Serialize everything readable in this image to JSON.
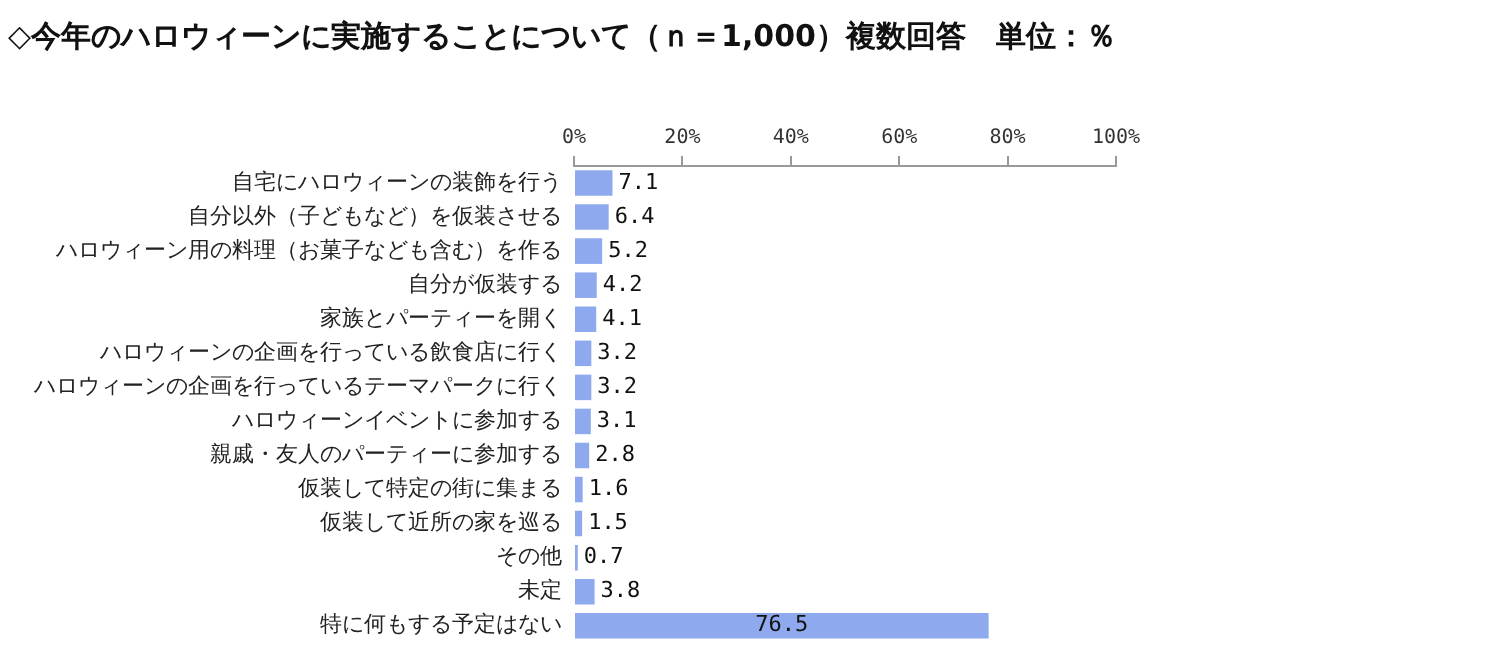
{
  "chart_data": {
    "type": "bar",
    "orientation": "horizontal",
    "title": "◇今年のハロウィーンに実施することについて（ｎ＝1,000）複数回答　単位：％",
    "categories": [
      "自宅にハロウィーンの装飾を行う",
      "自分以外（子どもなど）を仮装させる",
      "ハロウィーン用の料理（お菓子なども含む）を作る",
      "自分が仮装する",
      "家族とパーティーを開く",
      "ハロウィーンの企画を行っている飲食店に行く",
      "ハロウィーンの企画を行っているテーマパークに行く",
      "ハロウィーンイベントに参加する",
      "親戚・友人のパーティーに参加する",
      "仮装して特定の街に集まる",
      "仮装して近所の家を巡る",
      "その他",
      "未定",
      "特に何もする予定はない"
    ],
    "values": [
      7.1,
      6.4,
      5.2,
      4.2,
      4.1,
      3.2,
      3.2,
      3.1,
      2.8,
      1.6,
      1.5,
      0.7,
      3.8,
      76.5
    ],
    "color": "#8fa9ee",
    "xlim": [
      0,
      100
    ],
    "xticks": [
      {
        "value": 0,
        "label": "0%"
      },
      {
        "value": 20,
        "label": "20%"
      },
      {
        "value": 40,
        "label": "40%"
      },
      {
        "value": 60,
        "label": "60%"
      },
      {
        "value": 80,
        "label": "80%"
      },
      {
        "value": 100,
        "label": "100%"
      }
    ],
    "grid": false,
    "legend": false,
    "data_labels": true
  }
}
